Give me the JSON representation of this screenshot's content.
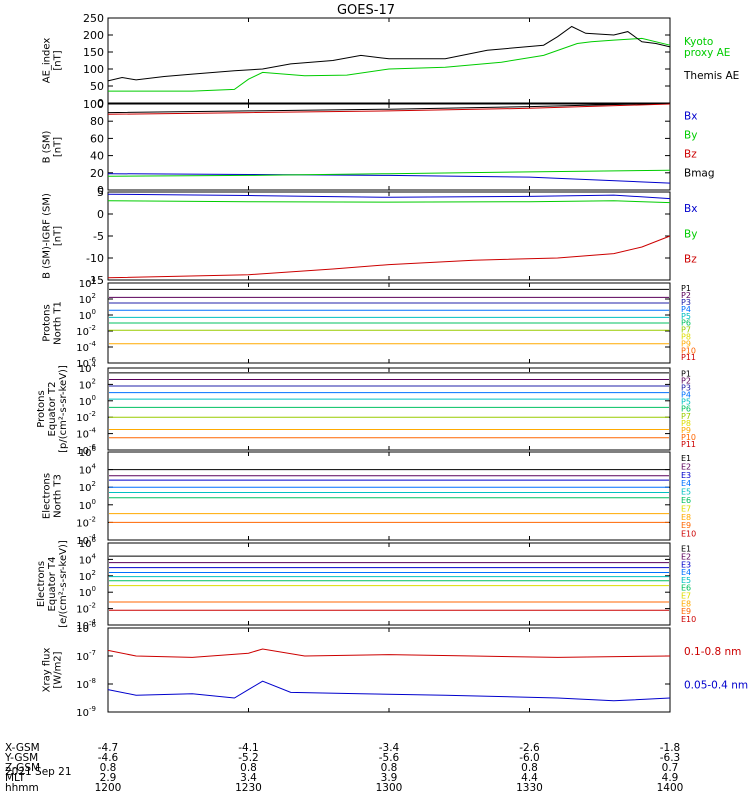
{
  "title": "GOES-17",
  "colors": {
    "black": "#000000",
    "green": "#00cc00",
    "red": "#cc0000",
    "blue": "#0000cc",
    "p_channels": [
      "#000000",
      "#5a005a",
      "#2020aa",
      "#0070ff",
      "#00c0c0",
      "#00c060",
      "#99cc00",
      "#dddd00",
      "#ffaa00",
      "#ff6600",
      "#cc0000"
    ],
    "e_channels": [
      "#000000",
      "#5a005a",
      "#0000cc",
      "#0070ff",
      "#00c0c0",
      "#00c060",
      "#dddd00",
      "#ffaa00",
      "#ff6600",
      "#cc0000"
    ]
  },
  "chart_data": [
    {
      "type": "line",
      "ylabel": [
        "AE_index",
        "[nT]"
      ],
      "ylim": [
        0,
        250
      ],
      "yticks": [
        "0",
        "50",
        "100",
        "150",
        "200",
        "250"
      ],
      "x_hours": [
        12.0,
        14.0
      ],
      "series": [
        {
          "name": "Kyoto proxy AE",
          "label_lines": [
            "Kyoto",
            "proxy AE"
          ],
          "color_key": "green",
          "values": [
            [
              12.0,
              35
            ],
            [
              12.3,
              35
            ],
            [
              12.45,
              40
            ],
            [
              12.5,
              70
            ],
            [
              12.55,
              90
            ],
            [
              12.7,
              80
            ],
            [
              12.85,
              82
            ],
            [
              13.0,
              100
            ],
            [
              13.2,
              105
            ],
            [
              13.4,
              120
            ],
            [
              13.55,
              140
            ],
            [
              13.67,
              175
            ],
            [
              13.72,
              180
            ],
            [
              13.8,
              185
            ],
            [
              13.9,
              190
            ],
            [
              14.0,
              170
            ]
          ]
        },
        {
          "name": "Themis AE",
          "label_lines": [
            "Themis AE"
          ],
          "color_key": "black",
          "values": [
            [
              12.0,
              65
            ],
            [
              12.05,
              75
            ],
            [
              12.1,
              68
            ],
            [
              12.2,
              78
            ],
            [
              12.3,
              85
            ],
            [
              12.45,
              95
            ],
            [
              12.55,
              100
            ],
            [
              12.65,
              115
            ],
            [
              12.8,
              125
            ],
            [
              12.9,
              140
            ],
            [
              13.0,
              130
            ],
            [
              13.2,
              130
            ],
            [
              13.35,
              155
            ],
            [
              13.55,
              170
            ],
            [
              13.6,
              195
            ],
            [
              13.65,
              225
            ],
            [
              13.7,
              205
            ],
            [
              13.8,
              200
            ],
            [
              13.85,
              210
            ],
            [
              13.9,
              180
            ],
            [
              13.95,
              175
            ],
            [
              14.0,
              165
            ]
          ]
        }
      ]
    },
    {
      "type": "line",
      "ylabel": [
        "B (SM)",
        "[nT]"
      ],
      "ylim": [
        0,
        100
      ],
      "yticks": [
        "0",
        "20",
        "40",
        "60",
        "80",
        "100"
      ],
      "series": [
        {
          "name": "Bx",
          "label_lines": [
            "Bx"
          ],
          "color_key": "blue",
          "values": [
            [
              12.0,
              19
            ],
            [
              12.5,
              18
            ],
            [
              13.0,
              17
            ],
            [
              13.5,
              15
            ],
            [
              14.0,
              8
            ]
          ]
        },
        {
          "name": "By",
          "label_lines": [
            "By"
          ],
          "color_key": "green",
          "values": [
            [
              12.0,
              16
            ],
            [
              12.5,
              17
            ],
            [
              13.0,
              19
            ],
            [
              13.5,
              21
            ],
            [
              14.0,
              23
            ]
          ]
        },
        {
          "name": "Bz",
          "label_lines": [
            "Bz"
          ],
          "color_key": "red",
          "values": [
            [
              12.0,
              88
            ],
            [
              12.5,
              90
            ],
            [
              13.0,
              92
            ],
            [
              13.5,
              95
            ],
            [
              14.0,
              100
            ]
          ]
        },
        {
          "name": "Bmag",
          "label_lines": [
            "Bmag"
          ],
          "color_key": "black",
          "values": [
            [
              12.0,
              90
            ],
            [
              12.5,
              92
            ],
            [
              13.0,
              94
            ],
            [
              13.5,
              97
            ],
            [
              14.0,
              101
            ]
          ]
        }
      ]
    },
    {
      "type": "line",
      "ylabel": [
        "B (SM)-IGRF (SM)",
        "[nT]"
      ],
      "ylim": [
        -15,
        5
      ],
      "yticks": [
        "-15",
        "-10",
        "-5",
        "0",
        "5"
      ],
      "series": [
        {
          "name": "Bx",
          "label_lines": [
            "Bx"
          ],
          "color_key": "blue",
          "values": [
            [
              12.0,
              4.5
            ],
            [
              12.5,
              4.2
            ],
            [
              13.0,
              3.8
            ],
            [
              13.5,
              4.0
            ],
            [
              13.8,
              4.3
            ],
            [
              14.0,
              3.5
            ]
          ]
        },
        {
          "name": "By",
          "label_lines": [
            "By"
          ],
          "color_key": "green",
          "values": [
            [
              12.0,
              3
            ],
            [
              12.5,
              2.8
            ],
            [
              13.0,
              2.7
            ],
            [
              13.5,
              2.8
            ],
            [
              13.8,
              3.0
            ],
            [
              14.0,
              2.6
            ]
          ]
        },
        {
          "name": "Bz",
          "label_lines": [
            "Bz"
          ],
          "color_key": "red",
          "values": [
            [
              12.0,
              -14.5
            ],
            [
              12.5,
              -13.8
            ],
            [
              12.8,
              -12.5
            ],
            [
              13.0,
              -11.5
            ],
            [
              13.3,
              -10.5
            ],
            [
              13.6,
              -10
            ],
            [
              13.8,
              -9
            ],
            [
              13.9,
              -7.5
            ],
            [
              14.0,
              -5
            ]
          ]
        }
      ]
    },
    {
      "type": "line",
      "scale": "log",
      "ylabel": [
        "Protons",
        "North T1"
      ],
      "ylim_exp": [
        -6,
        4
      ],
      "yticks": [
        "-6",
        "-4",
        "-2",
        "0",
        "2",
        "4"
      ],
      "channels": [
        "P1",
        "P2",
        "P3",
        "P4",
        "P5",
        "P6",
        "P7",
        "P8",
        "P9",
        "P10",
        "P11"
      ],
      "levels_exp": [
        3.2,
        2.2,
        1.5,
        0.6,
        -0.3,
        -1.0,
        -1.9,
        null,
        -3.6,
        null,
        null
      ]
    },
    {
      "type": "line",
      "scale": "log",
      "ylabel": [
        "Protons",
        "Equator T2",
        "[p/(cm²-s-sr-keV)]"
      ],
      "ylim_exp": [
        -6,
        4
      ],
      "yticks": [
        "-6",
        "-4",
        "-2",
        "0",
        "2",
        "4"
      ],
      "channels": [
        "P1",
        "P2",
        "P3",
        "P4",
        "P5",
        "P6",
        "P7",
        "P8",
        "P9",
        "P10",
        "P11"
      ],
      "levels_exp": [
        3.4,
        2.6,
        1.8,
        1.0,
        0.2,
        -0.8,
        -2.0,
        null,
        -3.5,
        -4.5,
        null
      ]
    },
    {
      "type": "line",
      "scale": "log",
      "ylabel": [
        "Electrons",
        "North T3"
      ],
      "ylim_exp": [
        -4,
        6
      ],
      "yticks": [
        "-4",
        "-2",
        "0",
        "2",
        "4",
        "6"
      ],
      "channels": [
        "E1",
        "E2",
        "E3",
        "E4",
        "E5",
        "E6",
        "E7",
        "E8",
        "E9",
        "E10"
      ],
      "levels_exp": [
        4.0,
        3.3,
        2.8,
        2.0,
        1.4,
        0.8,
        null,
        -1.0,
        -2.0,
        null
      ]
    },
    {
      "type": "line",
      "scale": "log",
      "ylabel": [
        "Electrons",
        "Equator T4",
        "[e/(cm²-s-sr-keV)]"
      ],
      "ylim_exp": [
        -4,
        6
      ],
      "yticks": [
        "-4",
        "-2",
        "0",
        "2",
        "4",
        "6"
      ],
      "channels": [
        "E1",
        "E2",
        "E3",
        "E4",
        "E5",
        "E6",
        "E7",
        "E8",
        "E9",
        "E10"
      ],
      "levels_exp": [
        4.4,
        3.6,
        3.0,
        2.4,
        1.9,
        1.4,
        0.8,
        null,
        -1.2,
        -2.2
      ]
    },
    {
      "type": "line",
      "scale": "log",
      "ylabel": [
        "Xray flux",
        "[W/m2]"
      ],
      "ylim_exp": [
        -9,
        -6
      ],
      "yticks": [
        "-9",
        "-8",
        "-7",
        "-6"
      ],
      "series": [
        {
          "name": "0.1-0.8 nm",
          "label_lines": [
            "0.1-0.8 nm"
          ],
          "color_key": "red",
          "values": [
            [
              12.0,
              -6.8
            ],
            [
              12.1,
              -7.0
            ],
            [
              12.3,
              -7.05
            ],
            [
              12.5,
              -6.9
            ],
            [
              12.55,
              -6.75
            ],
            [
              12.7,
              -7.0
            ],
            [
              13.0,
              -6.95
            ],
            [
              13.3,
              -7.0
            ],
            [
              13.6,
              -7.05
            ],
            [
              14.0,
              -7.0
            ]
          ]
        },
        {
          "name": "0.05-0.4 nm",
          "label_lines": [
            "0.05-0.4 nm"
          ],
          "color_key": "blue",
          "values": [
            [
              12.0,
              -8.2
            ],
            [
              12.1,
              -8.4
            ],
            [
              12.3,
              -8.35
            ],
            [
              12.45,
              -8.5
            ],
            [
              12.5,
              -8.2
            ],
            [
              12.55,
              -7.9
            ],
            [
              12.65,
              -8.3
            ],
            [
              12.9,
              -8.35
            ],
            [
              13.2,
              -8.4
            ],
            [
              13.6,
              -8.5
            ],
            [
              13.8,
              -8.6
            ],
            [
              14.0,
              -8.5
            ]
          ]
        }
      ]
    }
  ],
  "xaxis": {
    "row_labels": [
      "X-GSM",
      "Y-GSM",
      "Z-GSM",
      "MLT",
      "hhmm"
    ],
    "columns": [
      [
        "-4.7",
        "-4.6",
        "0.8",
        "2.9",
        "1200"
      ],
      [
        "-4.1",
        "-5.2",
        "0.8",
        "3.4",
        "1230"
      ],
      [
        "-3.4",
        "-5.6",
        "0.8",
        "3.9",
        "1300"
      ],
      [
        "-2.6",
        "-6.0",
        "0.8",
        "4.4",
        "1330"
      ],
      [
        "-1.8",
        "-6.3",
        "0.7",
        "4.9",
        "1400"
      ]
    ],
    "date": "2021 Sep 21"
  }
}
